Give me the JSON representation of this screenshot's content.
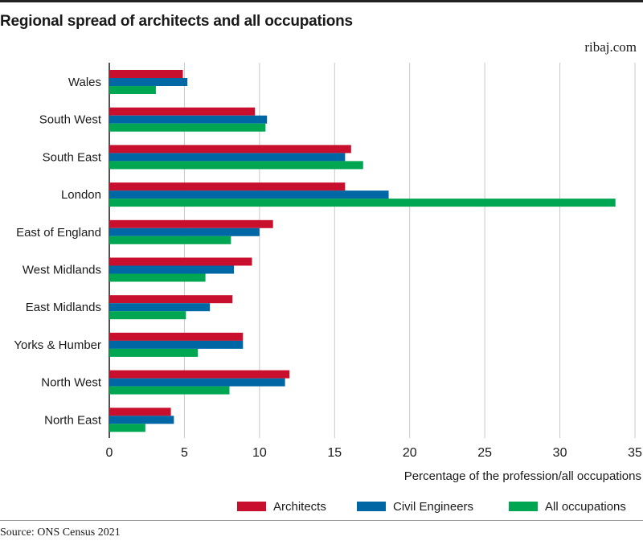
{
  "title": "Regional spread of architects and all occupations",
  "brand": "ribaj.com",
  "source": "Source: ONS Census 2021",
  "chart_data": {
    "type": "bar",
    "orientation": "horizontal",
    "categories": [
      "Wales",
      "South West",
      "South East",
      "London",
      "East of England",
      "West Midlands",
      "East Midlands",
      "Yorks & Humber",
      "North West",
      "North East"
    ],
    "series": [
      {
        "name": "Architects",
        "color": "#c8102e",
        "values": [
          4.9,
          9.7,
          16.1,
          15.7,
          10.9,
          9.5,
          8.2,
          8.9,
          12.0,
          4.1
        ]
      },
      {
        "name": "Civil Engineers",
        "color": "#0067a5",
        "values": [
          5.2,
          10.5,
          15.7,
          18.6,
          10.0,
          8.3,
          6.7,
          8.9,
          11.7,
          4.3
        ]
      },
      {
        "name": "All occupations",
        "color": "#00a651",
        "values": [
          3.1,
          10.4,
          16.9,
          33.7,
          8.1,
          6.4,
          5.1,
          5.9,
          8.0,
          2.4
        ]
      }
    ],
    "xlim": [
      0,
      35
    ],
    "xticks": [
      "0",
      "5",
      "10",
      "15",
      "20",
      "25",
      "30",
      "35"
    ],
    "xlabel": "Percentage of the profession/all occupations",
    "grid": "vertical",
    "legend_position": "bottom-right"
  }
}
